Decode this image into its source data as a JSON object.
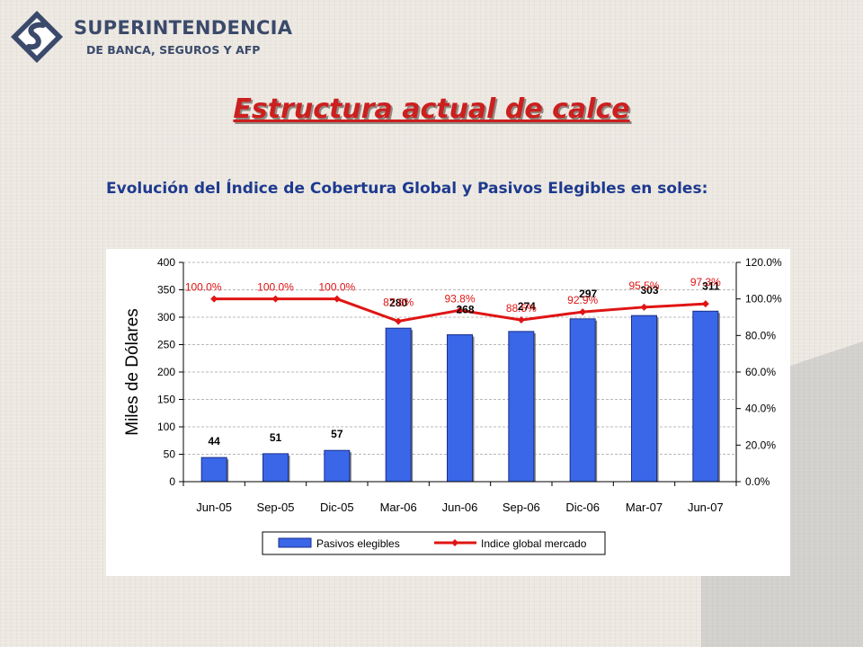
{
  "logo": {
    "line1": "SUPERINTENDENCIA",
    "line2": "DE BANCA, SEGUROS Y AFP",
    "icon": "sbs-logo-icon"
  },
  "page": {
    "title": "Estructura actual de calce",
    "subtitle": "Evolución del Índice de Cobertura Global y Pasivos Elegibles en soles:"
  },
  "chart_data": {
    "type": "bar",
    "categories": [
      "Jun-05",
      "Sep-05",
      "Dic-05",
      "Mar-06",
      "Jun-06",
      "Sep-06",
      "Dic-06",
      "Mar-07",
      "Jun-07"
    ],
    "series": [
      {
        "name": "Pasivos elegibles",
        "type": "bar",
        "axis": "left",
        "color": "#3a66e8",
        "values": [
          44,
          51,
          57,
          280,
          268,
          274,
          297,
          303,
          311
        ],
        "labels": [
          "44",
          "51",
          "57",
          "280",
          "268",
          "274",
          "297",
          "303",
          "311"
        ]
      },
      {
        "name": "Indice global mercado",
        "type": "line",
        "axis": "right",
        "color": "#e01414",
        "values": [
          100.0,
          100.0,
          100.0,
          87.8,
          93.8,
          88.5,
          92.9,
          95.5,
          97.3
        ],
        "labels": [
          "100.0%",
          "100.0%",
          "100.0%",
          "87.8%",
          "93.8%",
          "88.5%",
          "92.9%",
          "95.5%",
          "97.3%"
        ]
      }
    ],
    "ylabel": "Miles de Dólares",
    "ylim": [
      0,
      400
    ],
    "yticks": [
      "0",
      "50",
      "100",
      "150",
      "200",
      "250",
      "300",
      "350",
      "400"
    ],
    "y2lim": [
      0,
      120
    ],
    "y2ticks": [
      "0.0%",
      "20.0%",
      "40.0%",
      "60.0%",
      "80.0%",
      "100.0%",
      "120.0%"
    ],
    "grid": true,
    "legend_position": "bottom"
  }
}
